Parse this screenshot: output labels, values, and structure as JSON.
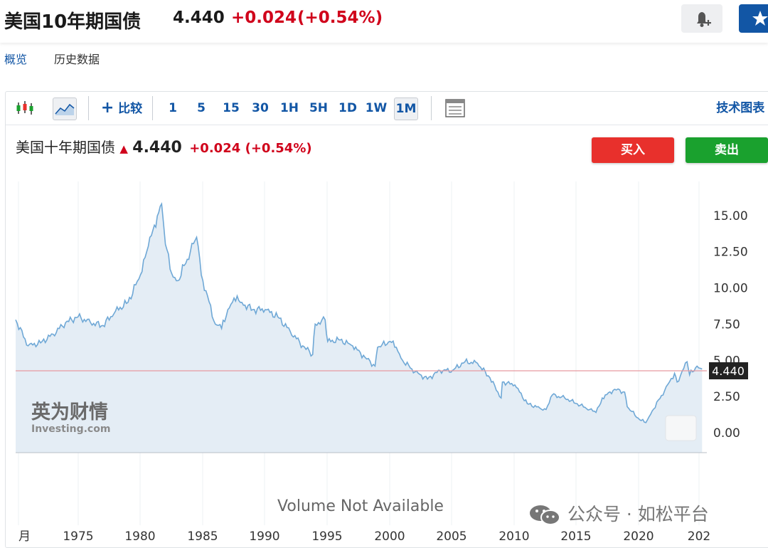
{
  "header": {
    "title": "美国10年期国债",
    "price": "4.440",
    "change": "+0.024",
    "change_pct": "(+0.54%)",
    "bell_icon": "bell-plus-icon",
    "star_icon": "star-icon"
  },
  "subnav": {
    "items": [
      "概览",
      "历史数据"
    ]
  },
  "toolbar": {
    "compare_label": "比较",
    "timeframes": [
      "1",
      "5",
      "15",
      "30",
      "1H",
      "5H",
      "1D",
      "1W",
      "1M"
    ],
    "active_timeframe": "1M",
    "tech_chart_label": "技术图表"
  },
  "chart_header": {
    "name": "美国十年期国债",
    "price": "4.440",
    "change": "+0.024",
    "change_pct": "(+0.54%)"
  },
  "trade": {
    "buy_label": "买入",
    "sell_label": "卖出"
  },
  "brand": {
    "logo_cn": "英为财情",
    "logo_en": "Investing.com"
  },
  "volume_text": "Volume Not Available",
  "footer_watermark": "公众号 · 如松平台",
  "colors": {
    "accent": "#1256a5",
    "up": "#d0021b",
    "buy": "#e8302c",
    "sell": "#1aa12e",
    "line": "#6fa8d6",
    "area": "#e4edf5"
  },
  "chart_data": {
    "type": "area",
    "x_ticks": [
      "月",
      "1975",
      "1980",
      "1985",
      "1990",
      "1995",
      "2000",
      "2005",
      "2010",
      "2015",
      "2020",
      "202"
    ],
    "y_ticks": [
      "0.00",
      "2.50",
      "5.00",
      "7.50",
      "10.00",
      "12.50",
      "15.00"
    ],
    "ylim": [
      -1.4,
      17
    ],
    "current_value": "4.440",
    "series": [
      {
        "x": [
          1970,
          1971,
          1972,
          1973,
          1974,
          1975,
          1976,
          1977,
          1978,
          1979,
          1980,
          1980.5,
          1981,
          1981.7,
          1982,
          1982.5,
          1983,
          1984,
          1984.5,
          1985,
          1986,
          1986.5,
          1987,
          1987.5,
          1988,
          1989,
          1990,
          1991,
          1992,
          1993,
          1993.8,
          1994,
          1994.8,
          1995,
          1996,
          1997,
          1998,
          1998.8,
          1999,
          2000,
          2000.5,
          2001,
          2002,
          2003,
          2004,
          2005,
          2006,
          2007,
          2008,
          2008.9,
          2009,
          2010,
          2011,
          2012,
          2012.5,
          2013,
          2014,
          2015,
          2016,
          2016.5,
          2017,
          2018,
          2018.8,
          2019,
          2020,
          2020.5,
          2021,
          2022,
          2022.8,
          2023,
          2023.8,
          2024,
          2024.6,
          2025
        ],
        "y": [
          7.8,
          6.0,
          6.2,
          6.8,
          7.6,
          8.0,
          7.6,
          7.4,
          8.4,
          9.0,
          10.9,
          12.5,
          14.0,
          15.8,
          13.0,
          11.0,
          10.5,
          12.5,
          13.5,
          10.5,
          7.5,
          7.2,
          8.5,
          9.3,
          9.0,
          8.5,
          8.5,
          8.0,
          7.0,
          6.0,
          5.4,
          7.5,
          7.8,
          6.3,
          6.4,
          6.0,
          5.2,
          4.6,
          5.9,
          6.3,
          5.9,
          5.0,
          4.2,
          3.7,
          4.3,
          4.3,
          4.9,
          4.8,
          3.8,
          2.4,
          3.5,
          3.3,
          2.0,
          1.7,
          1.6,
          2.6,
          2.4,
          2.0,
          1.6,
          1.4,
          2.4,
          3.0,
          2.8,
          1.8,
          0.9,
          0.7,
          1.5,
          2.9,
          4.1,
          3.5,
          4.9,
          4.0,
          4.6,
          4.4
        ]
      }
    ]
  }
}
